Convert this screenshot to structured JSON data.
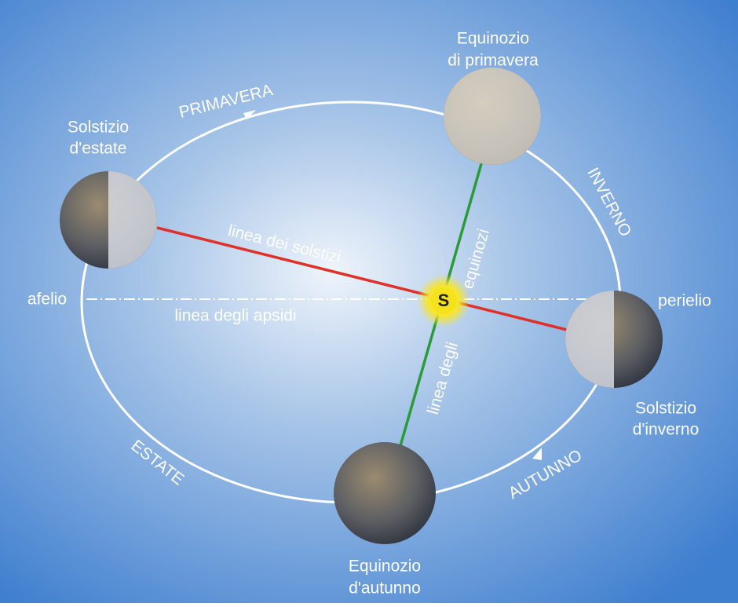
{
  "title": null,
  "positions": [
    {
      "lines": [
        "Solstizio",
        "d'estate"
      ]
    },
    {
      "lines": [
        "Equinozio",
        "di primavera"
      ]
    },
    {
      "lines": [
        "Solstizio",
        "d'inverno"
      ]
    },
    {
      "lines": [
        "Equinozio",
        "d'autunno"
      ]
    }
  ],
  "apsides": {
    "left": "afelio",
    "right": "perielio"
  },
  "seasons": {
    "spring": "PRIMAVERA",
    "winter": "INVERNO",
    "summer": "ESTATE",
    "autumn": "AUTUNNO"
  },
  "lines": {
    "solstices": "linea dei solstizi",
    "apsides": "linea degli apsidi",
    "equinoxes_1": "linea degli",
    "equinoxes_2": "equinozi"
  },
  "sun": "S"
}
